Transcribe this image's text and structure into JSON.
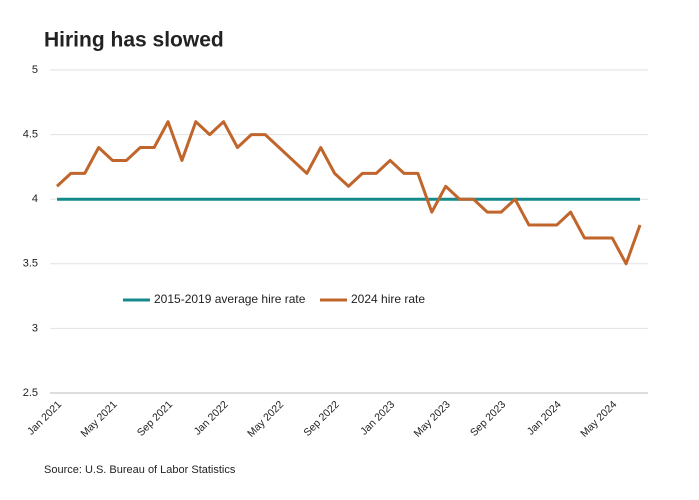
{
  "chart_data": {
    "type": "line",
    "title": "Hiring has slowed",
    "source": "Source: U.S. Bureau of Labor Statistics",
    "categories": [
      "Jan 2021",
      null,
      null,
      null,
      "May 2021",
      null,
      null,
      null,
      "Sep 2021",
      null,
      null,
      null,
      "Jan 2022",
      null,
      null,
      null,
      "May 2022",
      null,
      null,
      null,
      "Sep 2022",
      null,
      null,
      null,
      "Jan 2023",
      null,
      null,
      null,
      "May 2023",
      null,
      null,
      null,
      "Sep 2023",
      null,
      null,
      null,
      "Jan 2024",
      null,
      null,
      null,
      "May 2024",
      null,
      null
    ],
    "series": [
      {
        "name": "2015-2019 average hire rate",
        "color": "#148a8c",
        "values": [
          4,
          4,
          4,
          4,
          4,
          4,
          4,
          4,
          4,
          4,
          4,
          4,
          4,
          4,
          4,
          4,
          4,
          4,
          4,
          4,
          4,
          4,
          4,
          4,
          4,
          4,
          4,
          4,
          4,
          4,
          4,
          4,
          4,
          4,
          4,
          4,
          4,
          4,
          4,
          4,
          4,
          4,
          4
        ]
      },
      {
        "name": "2024 hire rate",
        "color": "#c0652b",
        "values": [
          4.1,
          4.2,
          4.2,
          4.4,
          4.3,
          4.3,
          4.4,
          4.4,
          4.6,
          4.3,
          4.6,
          4.5,
          4.6,
          4.4,
          4.5,
          4.5,
          4.4,
          4.3,
          4.2,
          4.4,
          4.2,
          4.1,
          4.2,
          4.2,
          4.3,
          4.2,
          4.2,
          3.9,
          4.1,
          4.0,
          4.0,
          3.9,
          3.9,
          4.0,
          3.8,
          3.8,
          3.8,
          3.9,
          3.7,
          3.7,
          3.7,
          3.5,
          3.8
        ]
      }
    ],
    "ylim": [
      2.5,
      5
    ],
    "yticks": [
      2.5,
      3,
      3.5,
      4,
      4.5,
      5
    ],
    "grid": true
  }
}
